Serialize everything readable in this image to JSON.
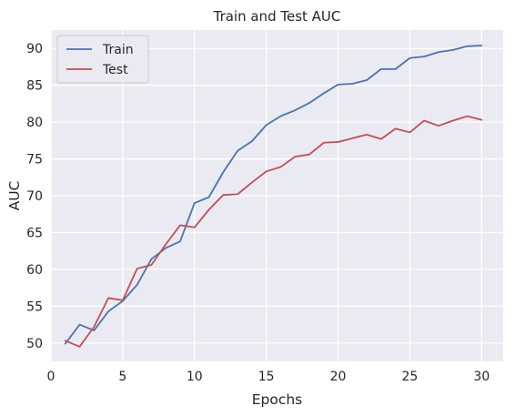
{
  "chart_data": {
    "type": "line",
    "title": "Train and Test AUC",
    "xlabel": "Epochs",
    "ylabel": "AUC",
    "xlim": [
      0,
      31.5
    ],
    "ylim": [
      47.5,
      92.5
    ],
    "xticks": [
      0,
      5,
      10,
      15,
      20,
      25,
      30
    ],
    "yticks": [
      50,
      55,
      60,
      65,
      70,
      75,
      80,
      85,
      90
    ],
    "grid": true,
    "legend_position": "top-left",
    "x": [
      1,
      2,
      3,
      4,
      5,
      6,
      7,
      8,
      9,
      10,
      11,
      12,
      13,
      14,
      15,
      16,
      17,
      18,
      19,
      20,
      21,
      22,
      23,
      24,
      25,
      26,
      27,
      28,
      29,
      30
    ],
    "series": [
      {
        "name": "Train",
        "color": "#4c72b0",
        "values": [
          49.9,
          52.5,
          51.7,
          54.3,
          55.7,
          57.9,
          61.4,
          62.9,
          63.8,
          69.0,
          69.8,
          73.2,
          76.1,
          77.4,
          79.6,
          80.8,
          81.6,
          82.6,
          83.9,
          85.1,
          85.2,
          85.7,
          87.2,
          87.2,
          88.7,
          88.9,
          89.5,
          89.8,
          90.3,
          90.4
        ]
      },
      {
        "name": "Test",
        "color": "#c44e52",
        "values": [
          50.3,
          49.5,
          52.2,
          56.1,
          55.8,
          60.1,
          60.6,
          63.4,
          66.0,
          65.7,
          68.1,
          70.1,
          70.2,
          71.8,
          73.3,
          73.9,
          75.3,
          75.6,
          77.2,
          77.3,
          77.8,
          78.3,
          77.7,
          79.1,
          78.6,
          80.2,
          79.5,
          80.2,
          80.8,
          80.3
        ]
      }
    ],
    "background_color": "#eaeaf2",
    "grid_color": "#ffffff"
  }
}
